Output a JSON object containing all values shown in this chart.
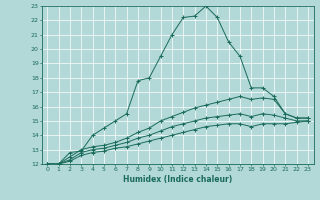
{
  "xlabel": "Humidex (Indice chaleur)",
  "ylabel": "",
  "background_color": "#b2d8d8",
  "grid_color": "#e8f5f5",
  "line_color": "#1a6b5a",
  "xlim": [
    -0.5,
    23.5
  ],
  "ylim": [
    12,
    23
  ],
  "xticks": [
    0,
    1,
    2,
    3,
    4,
    5,
    6,
    7,
    8,
    9,
    10,
    11,
    12,
    13,
    14,
    15,
    16,
    17,
    18,
    19,
    20,
    21,
    22,
    23
  ],
  "yticks": [
    12,
    13,
    14,
    15,
    16,
    17,
    18,
    19,
    20,
    21,
    22,
    23
  ],
  "curve1_x": [
    0,
    1,
    2,
    3,
    4,
    5,
    6,
    7,
    8,
    9,
    10,
    11,
    12,
    13,
    14,
    15,
    16,
    17,
    18,
    19,
    20,
    21,
    22,
    23
  ],
  "curve1_y": [
    12,
    12,
    12.8,
    12.9,
    14.0,
    14.5,
    15.0,
    15.5,
    17.8,
    18.0,
    19.5,
    21.0,
    22.2,
    22.3,
    23.0,
    22.2,
    20.5,
    19.5,
    17.3,
    17.3,
    16.7,
    15.5,
    15.2,
    15.2
  ],
  "curve2_x": [
    0,
    1,
    2,
    3,
    4,
    5,
    6,
    7,
    8,
    9,
    10,
    11,
    12,
    13,
    14,
    15,
    16,
    17,
    18,
    19,
    20,
    21,
    22,
    23
  ],
  "curve2_y": [
    12,
    12,
    12.5,
    13.0,
    13.2,
    13.3,
    13.5,
    13.8,
    14.2,
    14.5,
    15.0,
    15.3,
    15.6,
    15.9,
    16.1,
    16.3,
    16.5,
    16.7,
    16.5,
    16.6,
    16.5,
    15.5,
    15.2,
    15.2
  ],
  "curve3_x": [
    0,
    1,
    2,
    3,
    4,
    5,
    6,
    7,
    8,
    9,
    10,
    11,
    12,
    13,
    14,
    15,
    16,
    17,
    18,
    19,
    20,
    21,
    22,
    23
  ],
  "curve3_y": [
    12,
    12,
    12.3,
    12.8,
    13.0,
    13.1,
    13.3,
    13.5,
    13.8,
    14.0,
    14.3,
    14.6,
    14.8,
    15.0,
    15.2,
    15.3,
    15.4,
    15.5,
    15.3,
    15.5,
    15.4,
    15.2,
    15.0,
    15.0
  ],
  "curve4_x": [
    0,
    1,
    2,
    3,
    4,
    5,
    6,
    7,
    8,
    9,
    10,
    11,
    12,
    13,
    14,
    15,
    16,
    17,
    18,
    19,
    20,
    21,
    22,
    23
  ],
  "curve4_y": [
    12,
    12,
    12.2,
    12.6,
    12.8,
    12.9,
    13.1,
    13.2,
    13.4,
    13.6,
    13.8,
    14.0,
    14.2,
    14.4,
    14.6,
    14.7,
    14.8,
    14.8,
    14.6,
    14.8,
    14.8,
    14.8,
    14.9,
    15.0
  ]
}
